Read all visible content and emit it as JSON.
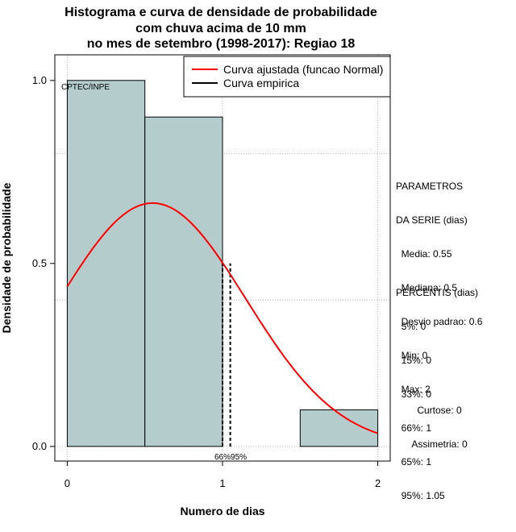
{
  "chart_data": {
    "type": "bar",
    "title_lines": [
      "Histograma e curva de densidade de probabilidade",
      "com chuva acima de 10 mm",
      "no mes de setembro (1998-2017): Regiao 18"
    ],
    "xlabel": "Numero de dias",
    "ylabel": "Densidade de probabilidade",
    "xlim": [
      -0.08,
      2.08
    ],
    "ylim": [
      -0.04,
      1.07
    ],
    "x_ticks": [
      "0",
      "1",
      "2"
    ],
    "y_ticks": [
      "0.0",
      "0.5",
      "1.0"
    ],
    "bins": [
      {
        "from": 0.0,
        "to": 0.5,
        "value": 1.0
      },
      {
        "from": 0.5,
        "to": 1.0,
        "value": 0.9
      },
      {
        "from": 1.0,
        "to": 1.5,
        "value": 0.0
      },
      {
        "from": 1.5,
        "to": 2.0,
        "value": 0.1
      }
    ],
    "normal_fit": {
      "mean": 0.55,
      "sd": 0.6,
      "color": "#ff0000"
    },
    "percentile_lines": [
      1.0,
      1.05
    ],
    "percentile_markers": "66%95%",
    "legend": [
      "Curva ajustada (funcao Normal)",
      "Curva empirica"
    ],
    "legend_colors": [
      "#ff0000",
      "#000000"
    ],
    "watermark": "CPTEC/INPE",
    "bar_color": "#b4cccc"
  },
  "stats": {
    "params_lines": [
      "PARAMETROS",
      "DA SERIE (dias)",
      "  Media: 0.55",
      "  Mediana: 0.5",
      "  Desvio padrao: 0.6",
      "  Min: 0",
      "  Max: 2"
    ],
    "percentis_lines": [
      "PERCENTIS (dias)",
      "  5%: 0",
      "  15%: 0",
      "  33%: 0",
      "  66%: 1",
      "  65%: 1",
      "  95%: 1.05"
    ],
    "shape_lines": [
      "Curtose: 0",
      "Assimetria: 0"
    ]
  }
}
